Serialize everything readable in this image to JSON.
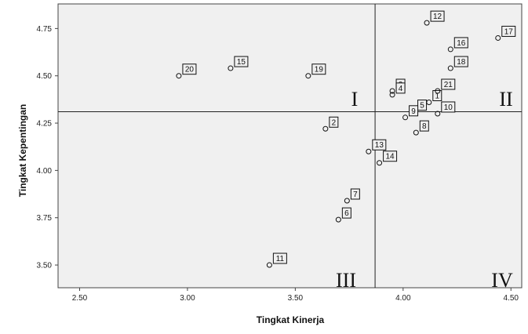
{
  "chart_data": {
    "type": "scatter",
    "xlabel": "Tingkat Kinerja",
    "ylabel": "Tingkat Kepentingan",
    "xlim": [
      2.4,
      4.55
    ],
    "ylim": [
      3.38,
      4.88
    ],
    "x_ticks": [
      "2.50",
      "3.00",
      "3.50",
      "4.00",
      "4.50"
    ],
    "y_ticks": [
      "3.50",
      "3.75",
      "4.00",
      "4.25",
      "4.50",
      "4.75"
    ],
    "x_tick_values": [
      2.5,
      3.0,
      3.5,
      4.0,
      4.5
    ],
    "y_tick_values": [
      3.5,
      3.75,
      4.0,
      4.25,
      4.5,
      4.75
    ],
    "x_reference": 3.87,
    "y_reference": 4.31,
    "quadrant_labels": [
      "I",
      "II",
      "III",
      "IV"
    ],
    "points": [
      {
        "label": "1",
        "x": 4.12,
        "y": 4.36
      },
      {
        "label": "2",
        "x": 3.64,
        "y": 4.22
      },
      {
        "label": "3",
        "x": 3.95,
        "y": 4.42
      },
      {
        "label": "4",
        "x": 3.95,
        "y": 4.4
      },
      {
        "label": "5",
        "x": 4.05,
        "y": 4.31
      },
      {
        "label": "6",
        "x": 3.7,
        "y": 3.74
      },
      {
        "label": "7",
        "x": 3.74,
        "y": 3.84
      },
      {
        "label": "8",
        "x": 4.06,
        "y": 4.2
      },
      {
        "label": "9",
        "x": 4.01,
        "y": 4.28
      },
      {
        "label": "10",
        "x": 4.16,
        "y": 4.3
      },
      {
        "label": "11",
        "x": 3.38,
        "y": 3.5
      },
      {
        "label": "12",
        "x": 4.11,
        "y": 4.78
      },
      {
        "label": "13",
        "x": 3.84,
        "y": 4.1
      },
      {
        "label": "14",
        "x": 3.89,
        "y": 4.04
      },
      {
        "label": "15",
        "x": 3.2,
        "y": 4.54
      },
      {
        "label": "16",
        "x": 4.22,
        "y": 4.64
      },
      {
        "label": "17",
        "x": 4.44,
        "y": 4.7
      },
      {
        "label": "18",
        "x": 4.22,
        "y": 4.54
      },
      {
        "label": "19",
        "x": 3.56,
        "y": 4.5
      },
      {
        "label": "20",
        "x": 2.96,
        "y": 4.5
      },
      {
        "label": "21",
        "x": 4.16,
        "y": 4.42
      }
    ]
  }
}
